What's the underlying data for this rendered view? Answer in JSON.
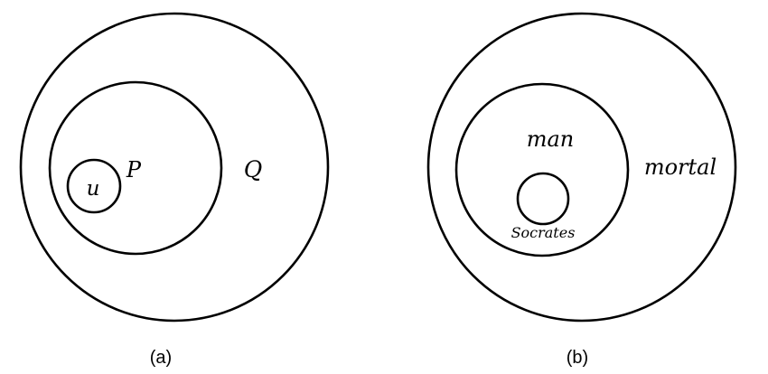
{
  "panel_a": {
    "caption": "(a)",
    "outer_label": "Q",
    "middle_label": "P",
    "inner_label": "u"
  },
  "panel_b": {
    "caption": "(b)",
    "outer_label": "mortal",
    "middle_label": "man",
    "inner_label": "Socrates"
  },
  "colors": {
    "stroke": "#000000",
    "background": "#ffffff"
  }
}
